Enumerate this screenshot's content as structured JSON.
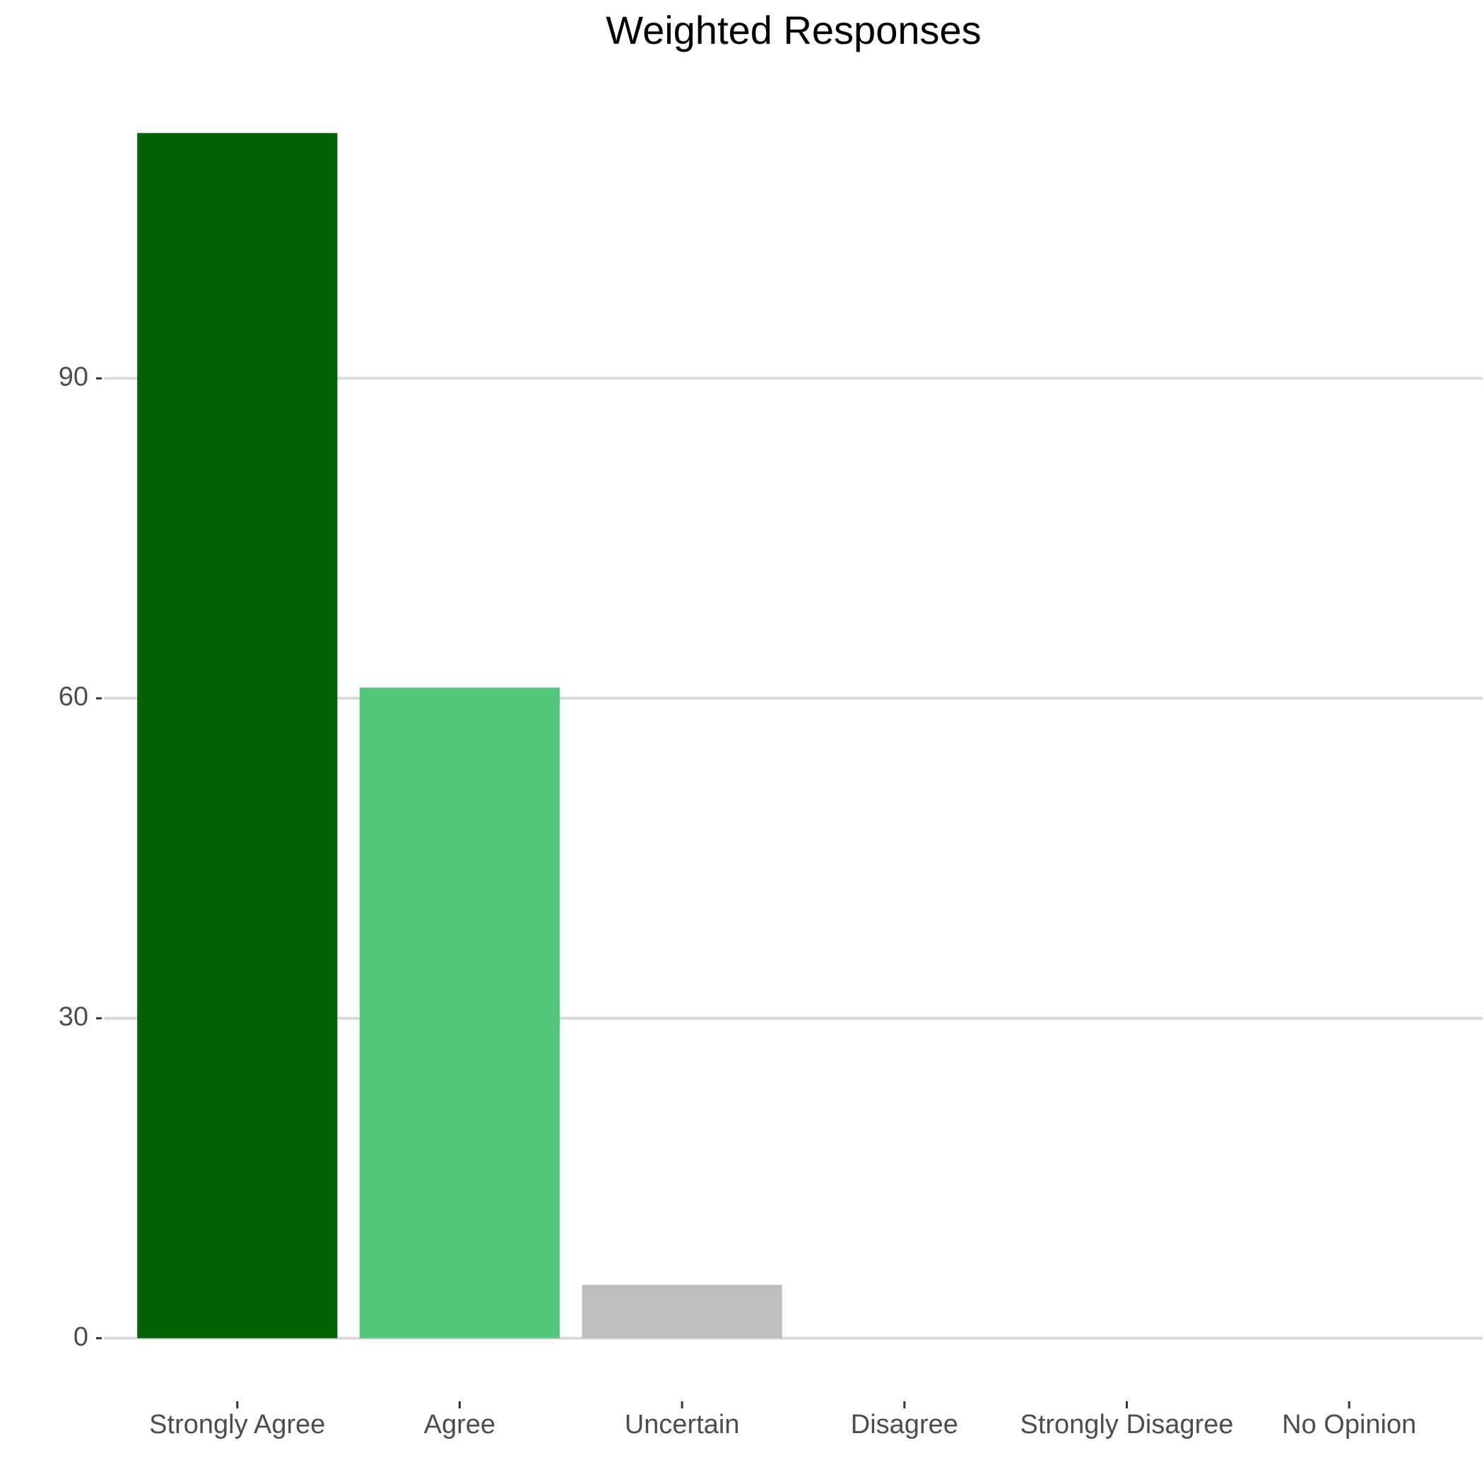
{
  "chart_data": {
    "type": "bar",
    "title": "Weighted Responses",
    "categories": [
      "Strongly Agree",
      "Agree",
      "Uncertain",
      "Disagree",
      "Strongly Disagree",
      "No Opinion"
    ],
    "values": [
      113,
      61,
      5,
      0,
      0,
      0
    ],
    "colors": [
      "#026302",
      "#52c878",
      "#bebebe",
      null,
      null,
      null
    ],
    "ylim": [
      -5.65,
      118.65
    ],
    "yticks": [
      0,
      30,
      60,
      90
    ],
    "grid": true
  }
}
